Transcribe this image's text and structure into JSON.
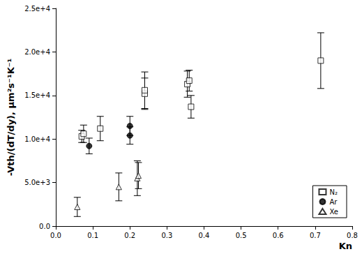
{
  "chart_data": {
    "type": "scatter",
    "x_label": "Kn",
    "y_label": "-Vth/(dT/dy), μm²s⁻¹K⁻¹",
    "xlim": [
      0,
      0.8
    ],
    "xticks": [
      {
        "value": 0,
        "label": "0.0"
      },
      {
        "value": 0.1,
        "label": "0.1"
      },
      {
        "value": 0.2,
        "label": "0.2"
      },
      {
        "value": 0.3,
        "label": "0.3"
      },
      {
        "value": 0.4,
        "label": "0.4"
      },
      {
        "value": 0.5,
        "label": "0.5"
      },
      {
        "value": 0.6,
        "label": "0.6"
      },
      {
        "value": 0.7,
        "label": "0.7"
      },
      {
        "value": 0.8,
        "label": "0.8"
      }
    ],
    "ylim": [
      0,
      25000
    ],
    "yticks": [
      {
        "value": 0,
        "label": "0.0"
      },
      {
        "value": 5000,
        "label": "5.0e+3"
      },
      {
        "value": 10000,
        "label": "1.0e+4"
      },
      {
        "value": 15000,
        "label": "1.5e+4"
      },
      {
        "value": 20000,
        "label": "2.0e+4"
      },
      {
        "value": 25000,
        "label": "2.5e+4"
      }
    ],
    "grid": false,
    "legend": "lower right",
    "series": [
      {
        "name": "N₂",
        "color": "#000000",
        "marker": "square_open",
        "x": [
          0.07,
          0.075,
          0.12,
          0.24,
          0.24,
          0.355,
          0.36,
          0.365,
          0.715
        ],
        "values": [
          10300,
          10600,
          11200,
          15200,
          15600,
          16300,
          16700,
          13700,
          19000
        ],
        "errors": [
          700,
          1000,
          1400,
          1800,
          2100,
          1500,
          1200,
          1300,
          3200
        ]
      },
      {
        "name": "Ar",
        "color": "#000000",
        "marker": "circle",
        "x": [
          0.09,
          0.2,
          0.2
        ],
        "values": [
          9200,
          11500,
          10400
        ],
        "errors": [
          900,
          1100,
          1000
        ]
      },
      {
        "name": "Xe",
        "color": "#000000",
        "marker": "triangle_open",
        "x": [
          0.058,
          0.17,
          0.22,
          0.223
        ],
        "values": [
          2200,
          4500,
          5500,
          5800
        ],
        "errors": [
          1100,
          1600,
          2000,
          1500
        ]
      }
    ]
  }
}
